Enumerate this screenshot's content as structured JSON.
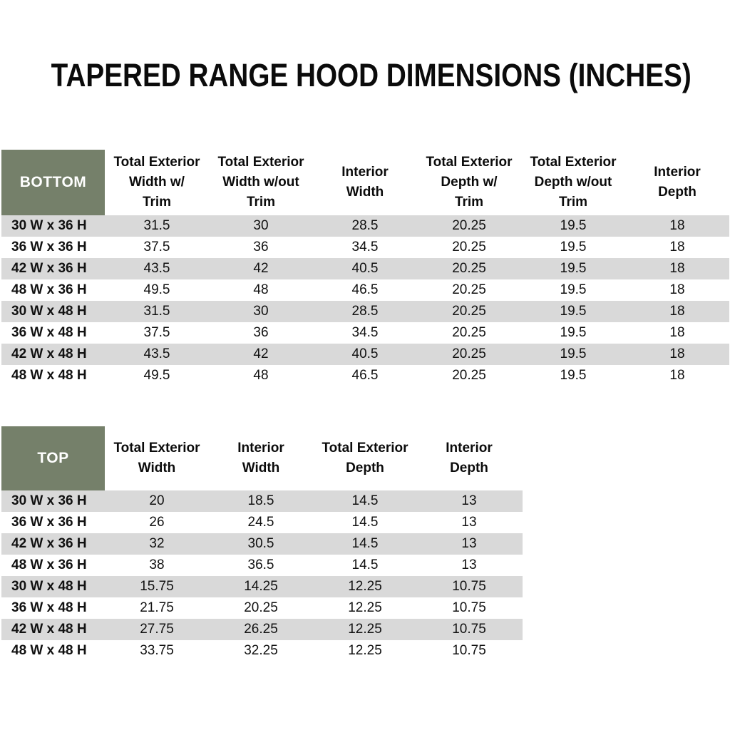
{
  "title": "TAPERED RANGE HOOD DIMENSIONS (INCHES)",
  "colors": {
    "header_green": "#75806A",
    "stripe_gray": "#D9D9D9",
    "header_text": "#FFFFFF",
    "body_text": "#111111"
  },
  "bottom_table": {
    "label": "BOTTOM",
    "columns": [
      [
        "Total Exterior",
        "Width w/",
        "Trim"
      ],
      [
        "Total Exterior",
        "Width w/out",
        "Trim"
      ],
      [
        "Interior",
        "Width"
      ],
      [
        "Total Exterior",
        "Depth w/",
        "Trim"
      ],
      [
        "Total Exterior",
        "Depth w/out",
        "Trim"
      ],
      [
        "Interior",
        "Depth"
      ]
    ],
    "rows": [
      {
        "label": "30 W x 36 H",
        "values": [
          "31.5",
          "30",
          "28.5",
          "20.25",
          "19.5",
          "18"
        ]
      },
      {
        "label": "36 W x 36 H",
        "values": [
          "37.5",
          "36",
          "34.5",
          "20.25",
          "19.5",
          "18"
        ]
      },
      {
        "label": "42 W x 36 H",
        "values": [
          "43.5",
          "42",
          "40.5",
          "20.25",
          "19.5",
          "18"
        ]
      },
      {
        "label": "48 W x 36 H",
        "values": [
          "49.5",
          "48",
          "46.5",
          "20.25",
          "19.5",
          "18"
        ]
      },
      {
        "label": "30 W x 48 H",
        "values": [
          "31.5",
          "30",
          "28.5",
          "20.25",
          "19.5",
          "18"
        ]
      },
      {
        "label": "36 W x 48 H",
        "values": [
          "37.5",
          "36",
          "34.5",
          "20.25",
          "19.5",
          "18"
        ]
      },
      {
        "label": "42 W x 48 H",
        "values": [
          "43.5",
          "42",
          "40.5",
          "20.25",
          "19.5",
          "18"
        ]
      },
      {
        "label": "48 W x 48 H",
        "values": [
          "49.5",
          "48",
          "46.5",
          "20.25",
          "19.5",
          "18"
        ]
      }
    ]
  },
  "top_table": {
    "label": "TOP",
    "columns": [
      [
        "Total Exterior",
        "Width"
      ],
      [
        "Interior",
        "Width"
      ],
      [
        "Total Exterior",
        "Depth"
      ],
      [
        "Interior",
        "Depth"
      ]
    ],
    "rows": [
      {
        "label": "30 W x 36 H",
        "values": [
          "20",
          "18.5",
          "14.5",
          "13"
        ]
      },
      {
        "label": "36 W x 36 H",
        "values": [
          "26",
          "24.5",
          "14.5",
          "13"
        ]
      },
      {
        "label": "42 W x 36 H",
        "values": [
          "32",
          "30.5",
          "14.5",
          "13"
        ]
      },
      {
        "label": "48 W x 36 H",
        "values": [
          "38",
          "36.5",
          "14.5",
          "13"
        ]
      },
      {
        "label": "30 W x 48 H",
        "values": [
          "15.75",
          "14.25",
          "12.25",
          "10.75"
        ]
      },
      {
        "label": "36 W x 48 H",
        "values": [
          "21.75",
          "20.25",
          "12.25",
          "10.75"
        ]
      },
      {
        "label": "42 W x 48 H",
        "values": [
          "27.75",
          "26.25",
          "12.25",
          "10.75"
        ]
      },
      {
        "label": "48 W x 48 H",
        "values": [
          "33.75",
          "32.25",
          "12.25",
          "10.75"
        ]
      }
    ]
  }
}
